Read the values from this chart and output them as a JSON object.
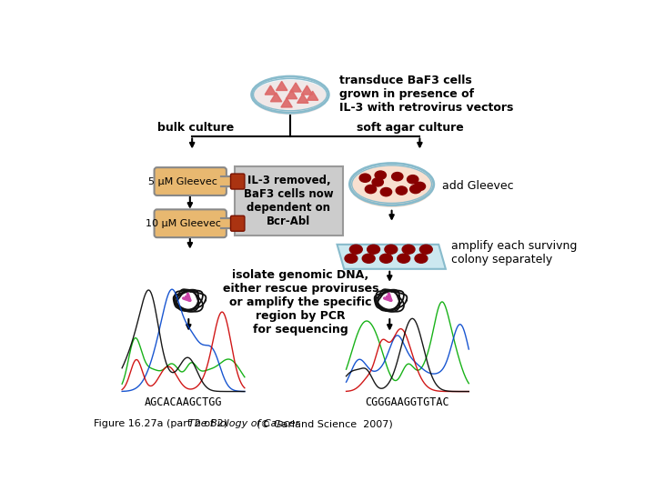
{
  "caption_regular": "Figure 16.27a (part 2 of 2)  ",
  "caption_italic": "The Biology of Cancer",
  "caption_suffix": "(© Garland Science  2007)",
  "bg_color": "#ffffff",
  "figsize": [
    7.2,
    5.4
  ],
  "dpi": 100,
  "top_text": "transduce BaF3 cells\ngrown in presence of\nIL-3 with retrovirus vectors",
  "bulk_label": "bulk culture",
  "soft_agar_label": "soft agar culture",
  "box_text": "IL-3 removed,\nBaF3 cells now\ndependent on\nBcr-Abl",
  "bottle1_label": "5 μM Gleevec",
  "bottle2_label": "10 μM Gleevec",
  "add_gleevec_label": "add Gleevec",
  "amplify_label": "amplify each survivng\ncolony separately",
  "isolate_label": "isolate genomic DNA,\neither rescue proviruses\nor amplify the specific\nregion by PCR\nfor sequencing",
  "seq1_label": "AGCACAAGCTGG",
  "seq2_label": "CGGGAAGGTGTAC",
  "arrow_color": "#000000",
  "box_fill": "#cccccc",
  "box_edge": "#999999",
  "bottle_fill": "#e8b870",
  "bottle_fill2": "#f0c882",
  "bottle_cap": "#aa3311",
  "bottle_outline": "#888888",
  "bottle_text": "#000000",
  "petri_fill_top": "#ddeeff",
  "petri_edge": "#88bbcc",
  "cell_color": "#dd6666",
  "petri_colony_fill": "#f5d0c0",
  "colony_fill": "#880000",
  "tray_fill": "#cce8f0",
  "tray_edge": "#88bbcc",
  "dna_color": "#111111",
  "pink_marker": "#cc44aa",
  "seq_green": "#00aa00",
  "seq_blue": "#0044cc",
  "seq_red": "#cc0000",
  "seq_black": "#000000"
}
